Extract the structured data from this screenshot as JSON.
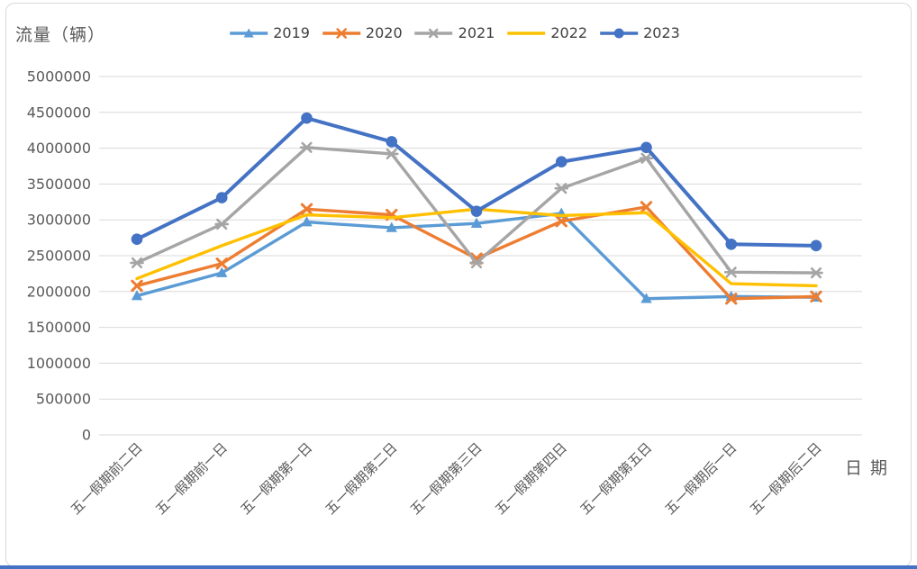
{
  "colors": {
    "grid": "#d9d9d9",
    "axis_text": "#595959",
    "legend_text": "#404040",
    "frame_border": "#d9d9d9",
    "bottom_bar": "#4472c4",
    "background": "#ffffff"
  },
  "chart_data": {
    "type": "line",
    "title": "流量（辆）",
    "xlabel": "日期",
    "ylabel": "流量（辆）",
    "ylim": [
      0,
      5000000
    ],
    "ytick_step": 500000,
    "ytick_labels": [
      "0",
      "500000",
      "1000000",
      "1500000",
      "2000000",
      "2500000",
      "3000000",
      "3500000",
      "4000000",
      "4500000",
      "5000000"
    ],
    "grid": "horizontal",
    "legend_position": "top-center",
    "categories": [
      "五一假期前二日",
      "五一假期前一日",
      "五一假期第一日",
      "五一假期第二日",
      "五一假期第三日",
      "五一假期第四日",
      "五一假期第五日",
      "五一假期后一日",
      "五一假期后二日"
    ],
    "series": [
      {
        "name": "2019",
        "color": "#5b9bd5",
        "marker": "triangle",
        "values": [
          1940000,
          2260000,
          2970000,
          2890000,
          2950000,
          3090000,
          1900000,
          1930000,
          1920000
        ]
      },
      {
        "name": "2020",
        "color": "#ed7d31",
        "marker": "x",
        "values": [
          2080000,
          2390000,
          3150000,
          3070000,
          2460000,
          2980000,
          3180000,
          1900000,
          1930000
        ]
      },
      {
        "name": "2021",
        "color": "#a5a5a5",
        "marker": "asterisk",
        "values": [
          2400000,
          2940000,
          4010000,
          3920000,
          2400000,
          3440000,
          3860000,
          2270000,
          2260000
        ]
      },
      {
        "name": "2022",
        "color": "#ffc000",
        "marker": "none",
        "values": [
          2180000,
          2640000,
          3070000,
          3030000,
          3150000,
          3060000,
          3100000,
          2110000,
          2080000
        ]
      },
      {
        "name": "2023",
        "color": "#4472c4",
        "marker": "circle",
        "values": [
          2730000,
          3310000,
          4420000,
          4090000,
          3120000,
          3810000,
          4010000,
          2660000,
          2640000
        ]
      }
    ]
  }
}
